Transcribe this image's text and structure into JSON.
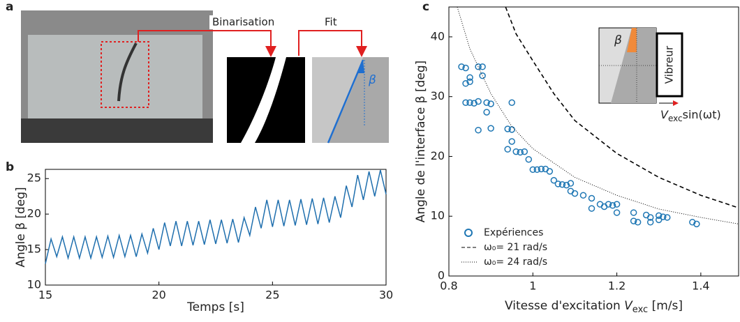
{
  "panel_labels": [
    "a",
    "b",
    "c"
  ],
  "panel_a": {
    "step_1": "Binarisation",
    "step_2": "Fit",
    "angle_symbol": "β"
  },
  "inset": {
    "angle_symbol": "β",
    "exciter": "Vibreur",
    "velocity": [
      "V",
      "exc",
      "sin(ωt)"
    ]
  },
  "chart_data": [
    {
      "type": "line",
      "x_label": "Temps [s]",
      "y_label": "Angle β [deg]",
      "xlim": [
        15,
        30
      ],
      "ylim": [
        10,
        26.3
      ],
      "xticks": [
        15,
        20,
        25,
        30
      ],
      "yticks": [
        10,
        15,
        20,
        25
      ],
      "x": [
        15,
        15.25,
        15.5,
        15.75,
        16,
        16.25,
        16.5,
        16.75,
        17,
        17.25,
        17.5,
        17.75,
        18,
        18.25,
        18.5,
        18.75,
        19,
        19.25,
        19.5,
        19.75,
        20,
        20.25,
        20.5,
        20.75,
        21,
        21.25,
        21.5,
        21.75,
        22,
        22.25,
        22.5,
        22.75,
        23,
        23.25,
        23.5,
        23.75,
        24,
        24.25,
        24.5,
        24.75,
        25,
        25.25,
        25.5,
        25.75,
        26,
        26.25,
        26.5,
        26.75,
        27,
        27.25,
        27.5,
        27.75,
        28,
        28.25,
        28.5,
        28.75,
        29,
        29.25,
        29.5,
        29.75,
        30
      ],
      "series": [
        {
          "color": "#1f6fae",
          "values": [
            13.0,
            16.5,
            14.0,
            16.8,
            13.8,
            16.8,
            13.8,
            16.8,
            13.8,
            16.8,
            13.9,
            16.9,
            13.9,
            17.0,
            14.0,
            17.0,
            14.0,
            17.2,
            14.5,
            18.0,
            15.0,
            18.8,
            15.5,
            19.0,
            15.5,
            19.0,
            15.6,
            19.0,
            15.7,
            19.2,
            15.8,
            19.2,
            15.9,
            19.3,
            16.0,
            19.5,
            17.0,
            21.0,
            18.0,
            22.0,
            18.2,
            22.0,
            18.3,
            22.0,
            18.4,
            22.1,
            18.5,
            22.2,
            18.6,
            22.3,
            18.8,
            22.5,
            19.5,
            24.0,
            21.0,
            25.5,
            22.0,
            26.0,
            22.5,
            26.2,
            22.8
          ]
        }
      ]
    },
    {
      "type": "scatter",
      "x_label": [
        "Vitesse d'excitation ",
        "V",
        "exc",
        " [m/s]"
      ],
      "y_label": "Angle de l'interface β [deg]",
      "xlim": [
        0.8,
        1.49
      ],
      "ylim": [
        0,
        45
      ],
      "xticks": [
        0.8,
        1,
        1.2,
        1.4
      ],
      "yticks": [
        0,
        10,
        20,
        30,
        40
      ],
      "legend": "lower left",
      "series": [
        {
          "name": "Expériences",
          "style": "markers",
          "color": "#1f77b4",
          "x": [
            0.83,
            0.84,
            0.84,
            0.85,
            0.85,
            0.84,
            0.85,
            0.86,
            0.87,
            0.87,
            0.88,
            0.88,
            0.87,
            0.89,
            0.89,
            0.9,
            0.9,
            0.94,
            0.95,
            0.94,
            0.95,
            0.95,
            0.96,
            0.97,
            0.98,
            0.99,
            1.0,
            1.01,
            1.02,
            1.03,
            1.04,
            1.05,
            1.06,
            1.07,
            1.08,
            1.09,
            1.09,
            1.1,
            1.12,
            1.14,
            1.14,
            1.16,
            1.17,
            1.18,
            1.19,
            1.2,
            1.2,
            1.24,
            1.24,
            1.25,
            1.27,
            1.28,
            1.28,
            1.3,
            1.31,
            1.32,
            1.3,
            1.38,
            1.39
          ],
          "values": [
            35,
            34.8,
            32.2,
            32.5,
            33.2,
            29,
            29,
            28.9,
            29.2,
            35,
            35,
            33.5,
            24.4,
            29,
            27.4,
            28.8,
            24.7,
            24.6,
            24.5,
            21.2,
            29,
            22.5,
            20.8,
            20.7,
            20.8,
            19.5,
            17.8,
            17.8,
            17.9,
            17.9,
            17.5,
            16.0,
            15.4,
            15.3,
            15.2,
            14.2,
            15.5,
            13.8,
            13.5,
            13.0,
            11.3,
            12.0,
            11.6,
            12.0,
            11.8,
            12.0,
            10.6,
            10.6,
            9.2,
            9.0,
            10.2,
            9.0,
            9.8,
            10.1,
            9.9,
            9.8,
            9.4,
            9.0,
            8.7
          ]
        },
        {
          "name": "ω₀= 21 rad/s",
          "style": "dashed",
          "color": "#000000",
          "x": [
            0.935,
            0.96,
            1.0,
            1.05,
            1.1,
            1.2,
            1.3,
            1.4,
            1.49
          ],
          "values": [
            45,
            40.5,
            36,
            30.5,
            26,
            20.5,
            16.5,
            13.5,
            11.4
          ]
        },
        {
          "name": "ω₀= 24 rad/s",
          "style": "dotted",
          "color": "#000000",
          "x": [
            0.82,
            0.85,
            0.9,
            0.95,
            1.0,
            1.1,
            1.2,
            1.3,
            1.4,
            1.49
          ],
          "values": [
            45,
            38,
            30.5,
            25,
            21.3,
            16.5,
            13.5,
            11.2,
            9.8,
            8.7
          ]
        }
      ]
    }
  ]
}
